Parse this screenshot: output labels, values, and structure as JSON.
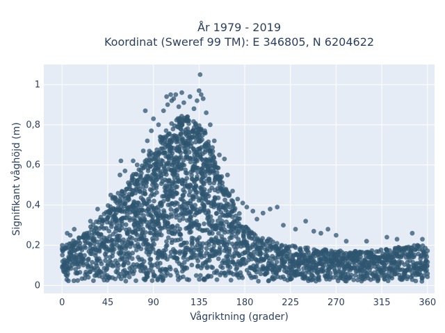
{
  "chart_data": {
    "type": "scatter",
    "title": "År 1979 - 2019",
    "subtitle": "Koordinat (Sweref 99 TM): E 346805, N 6204622",
    "xlabel": "Vågriktning (grader)",
    "ylabel": "Signifikant våghöjd (m)",
    "xlim": [
      -18,
      367
    ],
    "ylim": [
      -0.04,
      1.1
    ],
    "xticks": [
      0,
      45,
      90,
      135,
      180,
      225,
      270,
      315,
      360
    ],
    "xtick_labels": [
      "0",
      "45",
      "90",
      "135",
      "180",
      "225",
      "270",
      "315",
      "360"
    ],
    "yticks": [
      0,
      0.2,
      0.4,
      0.6,
      0.8,
      1
    ],
    "ytick_labels": [
      "0",
      "0,2",
      "0,4",
      "0,6",
      "0,8",
      "1"
    ],
    "grid": true,
    "colors": {
      "marker": "#2f5670",
      "plot_bg": "#e5ecf6",
      "grid": "#ffffff",
      "text": "#2a3f5f"
    },
    "envelope": {
      "direction": [
        0,
        10,
        20,
        30,
        40,
        50,
        60,
        70,
        80,
        90,
        100,
        110,
        120,
        130,
        140,
        150,
        160,
        170,
        180,
        190,
        200,
        220,
        240,
        260,
        280,
        300,
        320,
        340,
        360
      ],
      "max_height": [
        0.2,
        0.22,
        0.25,
        0.3,
        0.36,
        0.44,
        0.5,
        0.56,
        0.62,
        0.7,
        0.76,
        0.82,
        0.85,
        0.83,
        0.78,
        0.66,
        0.5,
        0.4,
        0.3,
        0.26,
        0.24,
        0.2,
        0.19,
        0.18,
        0.17,
        0.17,
        0.18,
        0.2,
        0.2
      ],
      "min_height": 0.02
    },
    "outliers": [
      {
        "x": 5,
        "y": 0.26
      },
      {
        "x": 8,
        "y": 0.25
      },
      {
        "x": 12,
        "y": 0.28
      },
      {
        "x": 28,
        "y": 0.32
      },
      {
        "x": 35,
        "y": 0.38
      },
      {
        "x": 48,
        "y": 0.45
      },
      {
        "x": 57,
        "y": 0.55
      },
      {
        "x": 58,
        "y": 0.62
      },
      {
        "x": 62,
        "y": 0.57
      },
      {
        "x": 70,
        "y": 0.62
      },
      {
        "x": 74,
        "y": 0.6
      },
      {
        "x": 80,
        "y": 0.67
      },
      {
        "x": 82,
        "y": 0.87
      },
      {
        "x": 84,
        "y": 0.72
      },
      {
        "x": 88,
        "y": 0.77
      },
      {
        "x": 90,
        "y": 0.83
      },
      {
        "x": 95,
        "y": 0.8
      },
      {
        "x": 100,
        "y": 0.87
      },
      {
        "x": 103,
        "y": 0.94
      },
      {
        "x": 104,
        "y": 0.9
      },
      {
        "x": 107,
        "y": 0.95
      },
      {
        "x": 108,
        "y": 0.92
      },
      {
        "x": 110,
        "y": 0.93
      },
      {
        "x": 112,
        "y": 0.95
      },
      {
        "x": 115,
        "y": 0.89
      },
      {
        "x": 118,
        "y": 0.96
      },
      {
        "x": 120,
        "y": 0.91
      },
      {
        "x": 126,
        "y": 0.94
      },
      {
        "x": 130,
        "y": 0.88
      },
      {
        "x": 133,
        "y": 0.92
      },
      {
        "x": 135,
        "y": 0.97
      },
      {
        "x": 136,
        "y": 1.05
      },
      {
        "x": 137,
        "y": 0.95
      },
      {
        "x": 139,
        "y": 0.93
      },
      {
        "x": 142,
        "y": 0.86
      },
      {
        "x": 146,
        "y": 0.8
      },
      {
        "x": 150,
        "y": 0.72
      },
      {
        "x": 155,
        "y": 0.65
      },
      {
        "x": 160,
        "y": 0.63
      },
      {
        "x": 163,
        "y": 0.55
      },
      {
        "x": 168,
        "y": 0.47
      },
      {
        "x": 173,
        "y": 0.43
      },
      {
        "x": 178,
        "y": 0.41
      },
      {
        "x": 182,
        "y": 0.39
      },
      {
        "x": 188,
        "y": 0.37
      },
      {
        "x": 192,
        "y": 0.33
      },
      {
        "x": 198,
        "y": 0.36
      },
      {
        "x": 205,
        "y": 0.38
      },
      {
        "x": 212,
        "y": 0.39
      },
      {
        "x": 218,
        "y": 0.3
      },
      {
        "x": 230,
        "y": 0.28
      },
      {
        "x": 240,
        "y": 0.32
      },
      {
        "x": 248,
        "y": 0.27
      },
      {
        "x": 255,
        "y": 0.26
      },
      {
        "x": 262,
        "y": 0.28
      },
      {
        "x": 270,
        "y": 0.25
      },
      {
        "x": 280,
        "y": 0.22
      },
      {
        "x": 300,
        "y": 0.22
      },
      {
        "x": 320,
        "y": 0.24
      },
      {
        "x": 330,
        "y": 0.23
      },
      {
        "x": 345,
        "y": 0.26
      },
      {
        "x": 355,
        "y": 0.23
      }
    ]
  }
}
